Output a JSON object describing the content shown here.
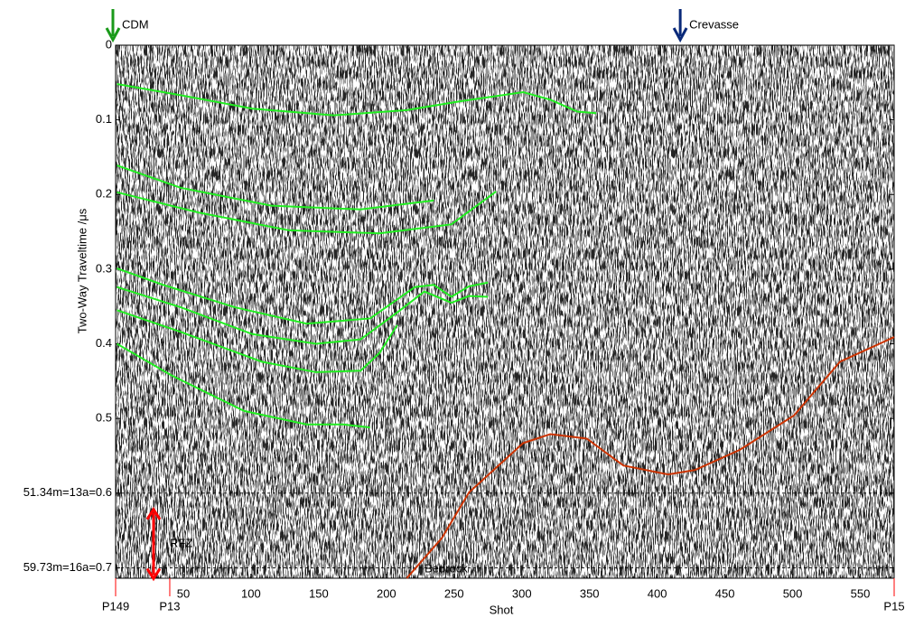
{
  "chart_data": {
    "type": "line",
    "x_label": "Shot",
    "y_label": "Two-Way Traveltime /μs",
    "xlim": [
      0,
      575
    ],
    "ylim": [
      0,
      0.714
    ],
    "xticks": [
      50,
      100,
      150,
      200,
      250,
      300,
      350,
      400,
      450,
      500,
      550
    ],
    "yticks": [
      0,
      0.1,
      0.2,
      0.3,
      0.4,
      0.5,
      {
        "value": 0.6,
        "label": "51.34m=13a=0.6"
      },
      {
        "value": 0.7,
        "label": "59.73m=16a=0.7"
      }
    ],
    "y_inverted": true,
    "markers": {
      "color": "#ff0000",
      "items": [
        {
          "x": 0,
          "label": "P149"
        },
        {
          "x": 40,
          "label": "P13"
        },
        {
          "x": 575,
          "label": "P15"
        }
      ]
    },
    "annotations": [
      {
        "text": "CDM",
        "x": 0,
        "color": "#1a9a1a"
      },
      {
        "text": "Crevasse",
        "x": 419,
        "color": "#0a2a7a"
      },
      {
        "text": "RFZ",
        "color": "#ff0000"
      },
      {
        "text": "Bedrock",
        "color": "#ff0000"
      }
    ],
    "series": [
      {
        "color": "#22ee22",
        "x": [
          1,
          48,
          101,
          161,
          215,
          255,
          301,
          321,
          341,
          355
        ],
        "values": [
          0.052,
          0.067,
          0.085,
          0.094,
          0.087,
          0.075,
          0.063,
          0.073,
          0.089,
          0.091
        ]
      },
      {
        "color": "#22ee22",
        "x": [
          1,
          48,
          115,
          181,
          235
        ],
        "values": [
          0.161,
          0.191,
          0.215,
          0.22,
          0.208
        ]
      },
      {
        "color": "#22ee22",
        "x": [
          1,
          61,
          128,
          195,
          248,
          281
        ],
        "values": [
          0.197,
          0.224,
          0.248,
          0.252,
          0.24,
          0.196
        ]
      },
      {
        "color": "#22ee22",
        "x": [
          1,
          35,
          88,
          141,
          188,
          221,
          235,
          248,
          261,
          275
        ],
        "values": [
          0.299,
          0.321,
          0.351,
          0.373,
          0.366,
          0.324,
          0.321,
          0.337,
          0.323,
          0.318
        ]
      },
      {
        "color": "#22ee22",
        "x": [
          1,
          48,
          101,
          148,
          181,
          208,
          228,
          248,
          261,
          275
        ],
        "values": [
          0.324,
          0.351,
          0.387,
          0.4,
          0.394,
          0.358,
          0.33,
          0.345,
          0.336,
          0.337
        ]
      },
      {
        "color": "#22ee22",
        "x": [
          1,
          48,
          108,
          148,
          181,
          195,
          208
        ],
        "values": [
          0.355,
          0.384,
          0.424,
          0.438,
          0.436,
          0.412,
          0.375
        ]
      },
      {
        "color": "#22ee22",
        "x": [
          1,
          41,
          95,
          141,
          168,
          188
        ],
        "values": [
          0.4,
          0.442,
          0.49,
          0.508,
          0.508,
          0.512
        ]
      },
      {
        "color": "#cc3300",
        "x": [
          215,
          241,
          261,
          301,
          321,
          348,
          375,
          408,
          428,
          461,
          501,
          535,
          575
        ],
        "values": [
          0.714,
          0.66,
          0.599,
          0.533,
          0.521,
          0.527,
          0.563,
          0.575,
          0.569,
          0.542,
          0.496,
          0.424,
          0.391
        ]
      }
    ]
  }
}
